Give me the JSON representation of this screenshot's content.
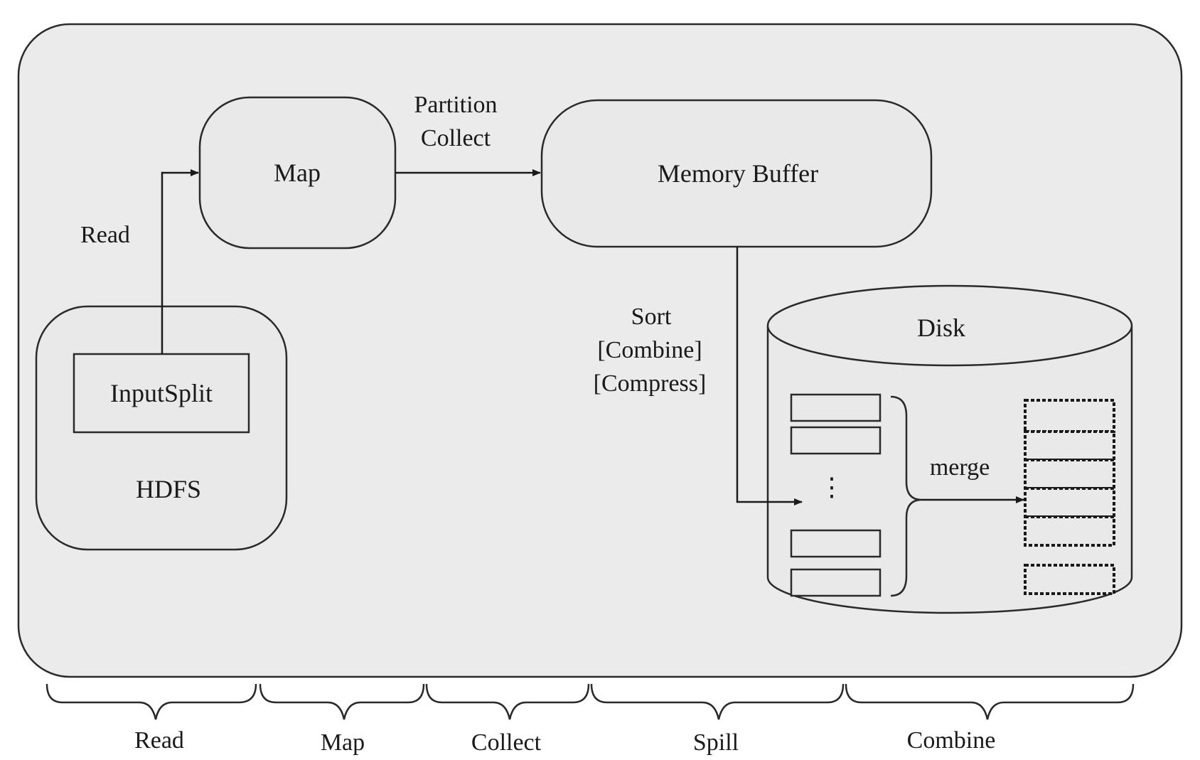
{
  "nodes": {
    "map": "Map",
    "memory_buffer": "Memory Buffer",
    "input_split": "InputSplit",
    "hdfs": "HDFS",
    "disk": "Disk"
  },
  "edge_labels": {
    "read": "Read",
    "partition": "Partition",
    "collect": "Collect",
    "sort": "Sort",
    "combine": "[Combine]",
    "compress": "[Compress]",
    "ellipsis": "⋮",
    "merge": "merge"
  },
  "phases": [
    "Read",
    "Map",
    "Collect",
    "Spill",
    "Combine"
  ],
  "colors": {
    "panel_fill": "#ebebeb",
    "box_fill": "#e9e9e9",
    "stroke": "#2a2a2a"
  }
}
